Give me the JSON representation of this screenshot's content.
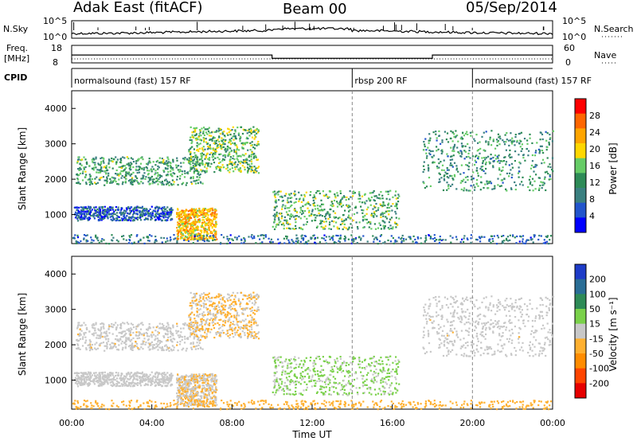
{
  "header": {
    "station": "Adak East (fitACF)",
    "beam": "Beam 00",
    "date": "05/Sep/2014"
  },
  "noise_panel": {
    "left_label": "N.Sky",
    "right_label": "N.Search",
    "y_ticks": [
      "10^5",
      "10^0"
    ],
    "right_ticks": [
      "10^5",
      "10^0"
    ]
  },
  "freq_panel": {
    "left_label_1": "Freq.",
    "left_label_2": "[MHz]",
    "right_label": "Nave",
    "left_ticks": [
      "18",
      "8"
    ],
    "right_ticks": [
      "60",
      "0"
    ]
  },
  "cpid_panel": {
    "label": "CPID",
    "segments": [
      {
        "label": "normalsound (fast) 157 RF",
        "start_hour": 0,
        "end_hour": 14
      },
      {
        "label": "rbsp 200 RF",
        "start_hour": 14,
        "end_hour": 20
      },
      {
        "label": "normalsound (fast) 157 RF",
        "start_hour": 20,
        "end_hour": 24
      }
    ]
  },
  "x_axis": {
    "label": "Time UT",
    "ticks": [
      "00:00",
      "04:00",
      "08:00",
      "12:00",
      "16:00",
      "20:00",
      "00:00"
    ]
  },
  "power_panel": {
    "ylabel": "Slant Range [km]",
    "y_ticks": [
      "1000",
      "2000",
      "3000",
      "4000"
    ],
    "colorbar_label": "Power [dB]",
    "colorbar_ticks": [
      "4",
      "8",
      "12",
      "16",
      "20",
      "24",
      "28"
    ]
  },
  "velocity_panel": {
    "ylabel": "Slant Range [km]",
    "y_ticks": [
      "1000",
      "2000",
      "3000",
      "4000"
    ],
    "colorbar_label": "Velocity [m s⁻¹]",
    "colorbar_ticks": [
      "200",
      "100",
      "50",
      "15",
      "-15",
      "-50",
      "-100",
      "-200"
    ]
  },
  "chart_data": {
    "type": "heatmap",
    "title": "Adak East (fitACF) Beam 00 05/Sep/2014",
    "xlabel": "Time UT",
    "ylabel": "Slant Range [km]",
    "x_range_hours": [
      0,
      24
    ],
    "y_range_km": [
      180,
      4500
    ],
    "power_scale_db": [
      0,
      30
    ],
    "velocity_scale": [
      -250,
      250
    ],
    "power_colors": [
      "#0000ff",
      "#2255cc",
      "#3a8080",
      "#2e8b57",
      "#66cc66",
      "#ffd700",
      "#ffa500",
      "#ff6600",
      "#ff0000"
    ],
    "velocity_colors": [
      "#1e3cc8",
      "#2a6e96",
      "#2e8b57",
      "#7ad14a",
      "#c8c8c8",
      "#ffb030",
      "#ff8c00",
      "#ff4500",
      "#e60000"
    ],
    "echo_regions": [
      {
        "name": "far range band left",
        "t_start": 0.2,
        "t_end": 6.5,
        "range_start": 1850,
        "range_end": 2650,
        "power_db": 12,
        "velocity": -10
      },
      {
        "name": "far range arc",
        "t_start": 5.8,
        "t_end": 9.3,
        "range_start": 2200,
        "range_end": 3500,
        "power_db": 14,
        "velocity": -30
      },
      {
        "name": "near range band",
        "t_start": 0.1,
        "t_end": 5.0,
        "range_start": 850,
        "range_end": 1250,
        "power_db": 6,
        "velocity": -5
      },
      {
        "name": "descending near trace",
        "t_start": 5.2,
        "t_end": 7.2,
        "range_start": 300,
        "range_end": 1200,
        "power_db": 20,
        "velocity": -25
      },
      {
        "name": "midday feature",
        "t_start": 10.0,
        "t_end": 16.3,
        "range_start": 600,
        "range_end": 1700,
        "power_db": 13,
        "velocity": 35
      },
      {
        "name": "evening far band",
        "t_start": 17.5,
        "t_end": 24.0,
        "range_start": 1700,
        "range_end": 3400,
        "power_db": 11,
        "velocity": -8
      },
      {
        "name": "ground scatter near",
        "t_start": 0.0,
        "t_end": 24.0,
        "range_start": 200,
        "range_end": 450,
        "power_db": 8,
        "velocity": -60
      }
    ],
    "nave_level": [
      {
        "t_start": 0,
        "t_end": 10,
        "freq_mhz": 12.5
      },
      {
        "t_start": 10,
        "t_end": 18,
        "freq_mhz": 10.6
      },
      {
        "t_start": 18,
        "t_end": 24,
        "freq_mhz": 12.5
      }
    ]
  }
}
